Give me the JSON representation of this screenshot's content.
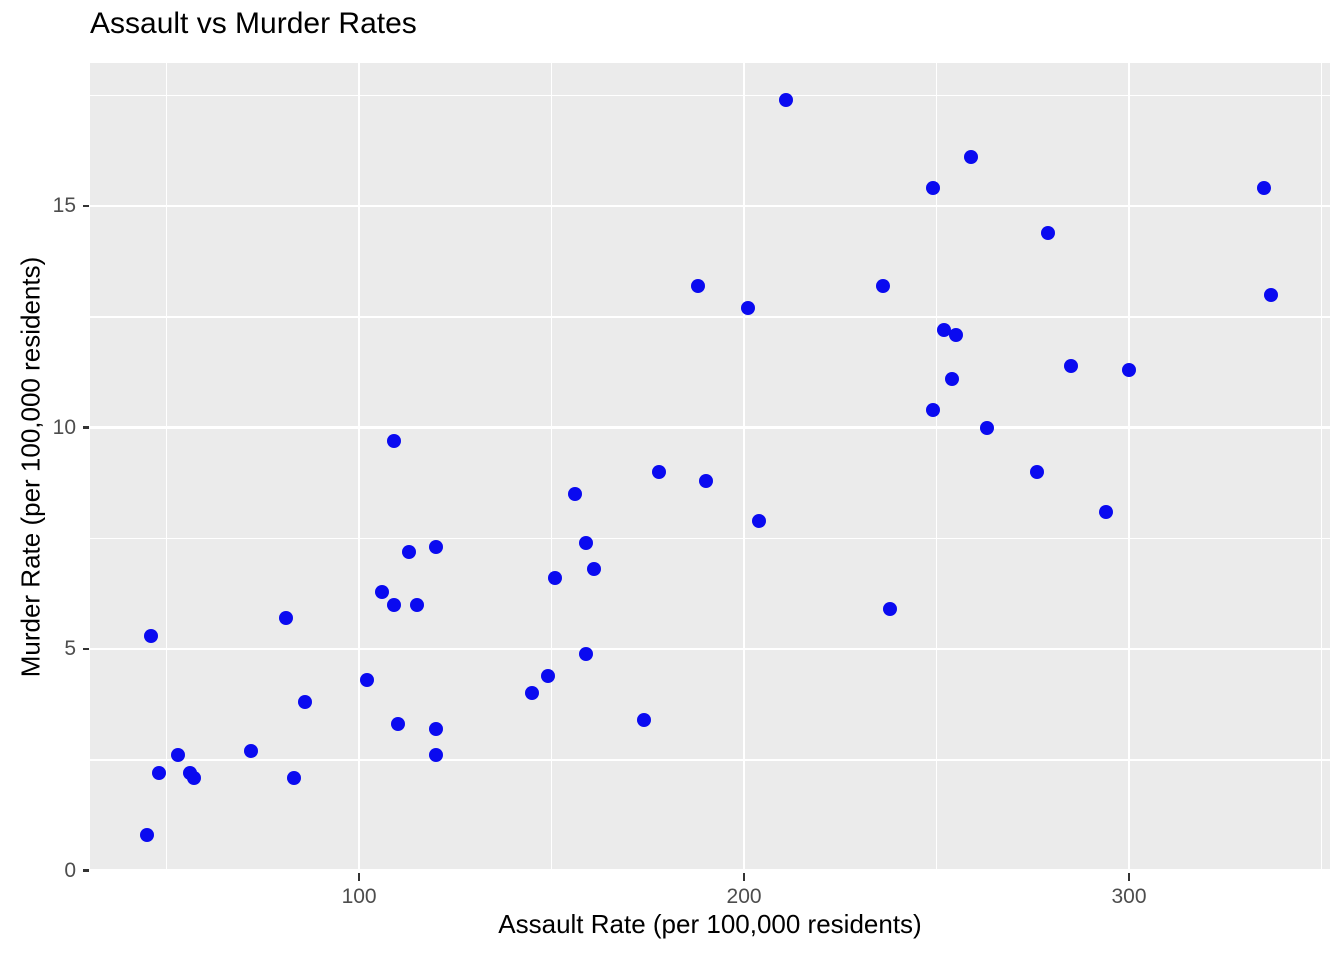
{
  "chart_data": {
    "type": "scatter",
    "title": "Assault vs Murder Rates",
    "xlabel": "Assault Rate (per 100,000 residents)",
    "ylabel": "Murder Rate (per 100,000 residents)",
    "x_ticks": [
      100,
      200,
      300
    ],
    "y_ticks": [
      0,
      5,
      10,
      15
    ],
    "x_minor_gridlines": [
      50,
      150,
      250,
      350
    ],
    "y_minor_gridlines": [
      2.5,
      7.5,
      12.5,
      17.5
    ],
    "xlim": [
      30.1,
      352.2
    ],
    "ylim": [
      -0.03,
      18.23
    ],
    "grid": "on",
    "legend": "none",
    "colors": {
      "point": "#0A0AF0",
      "panel_background": "#EBEBEB",
      "gridline": "#FFFFFF",
      "tick_label": "#4D4D4D",
      "tick_mark": "#333333",
      "title_text": "#000000"
    },
    "points": [
      [
        236,
        13.2
      ],
      [
        263,
        10.0
      ],
      [
        294,
        8.1
      ],
      [
        190,
        8.8
      ],
      [
        276,
        9.0
      ],
      [
        204,
        7.9
      ],
      [
        110,
        3.3
      ],
      [
        238,
        5.9
      ],
      [
        335,
        15.4
      ],
      [
        211,
        17.4
      ],
      [
        46,
        5.3
      ],
      [
        120,
        2.6
      ],
      [
        249,
        10.4
      ],
      [
        113,
        7.2
      ],
      [
        56,
        2.2
      ],
      [
        115,
        6.0
      ],
      [
        109,
        9.7
      ],
      [
        249,
        15.4
      ],
      [
        83,
        2.1
      ],
      [
        300,
        11.3
      ],
      [
        149,
        4.4
      ],
      [
        255,
        12.1
      ],
      [
        72,
        2.7
      ],
      [
        259,
        16.1
      ],
      [
        178,
        9.0
      ],
      [
        109,
        6.0
      ],
      [
        102,
        4.3
      ],
      [
        252,
        12.2
      ],
      [
        57,
        2.1
      ],
      [
        159,
        7.4
      ],
      [
        285,
        11.4
      ],
      [
        254,
        11.1
      ],
      [
        337,
        13.0
      ],
      [
        45,
        0.8
      ],
      [
        120,
        7.3
      ],
      [
        151,
        6.6
      ],
      [
        159,
        4.9
      ],
      [
        106,
        6.3
      ],
      [
        174,
        3.4
      ],
      [
        279,
        14.4
      ],
      [
        86,
        3.8
      ],
      [
        188,
        13.2
      ],
      [
        201,
        12.7
      ],
      [
        120,
        3.2
      ],
      [
        48,
        2.2
      ],
      [
        156,
        8.5
      ],
      [
        145,
        4.0
      ],
      [
        81,
        5.7
      ],
      [
        53,
        2.6
      ],
      [
        161,
        6.8
      ]
    ]
  }
}
